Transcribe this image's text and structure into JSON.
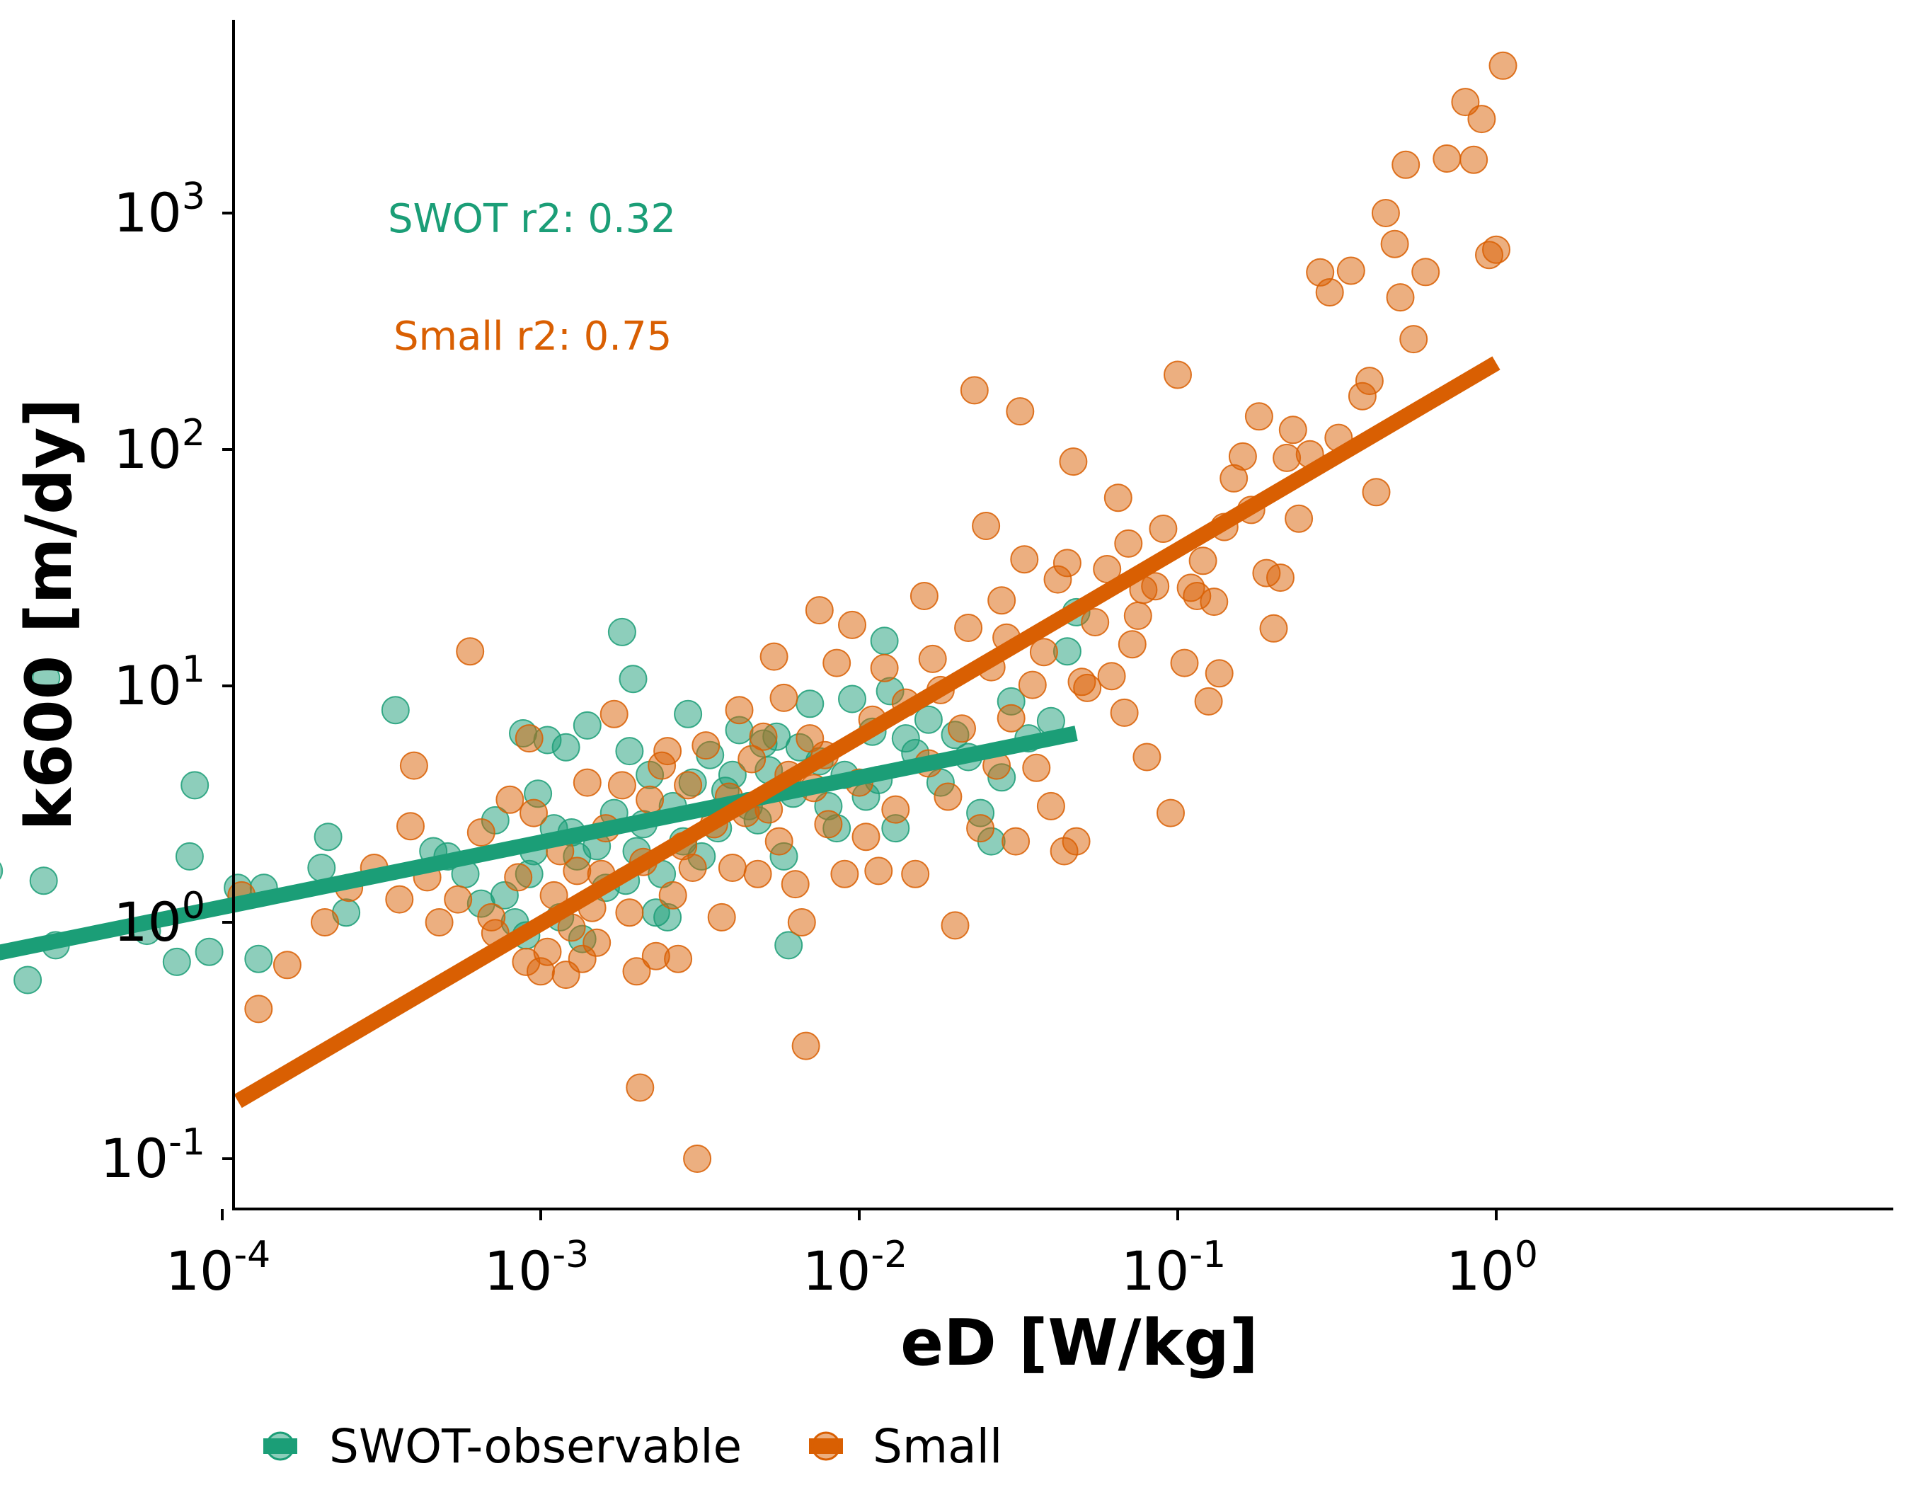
{
  "chart_data": {
    "type": "scatter",
    "xlabel": "eD [W/kg]",
    "ylabel": "k600 [m/dy]",
    "x_scale": "log",
    "y_scale": "log",
    "xlim": [
      1.15e-05,
      1.25
    ],
    "ylim": [
      0.059,
      6800
    ],
    "grid": false,
    "legend_position": "bottom",
    "x_ticks": [
      {
        "value": 0.0001,
        "base": "10",
        "exp": "-4"
      },
      {
        "value": 0.001,
        "base": "10",
        "exp": "-3"
      },
      {
        "value": 0.01,
        "base": "10",
        "exp": "-2"
      },
      {
        "value": 0.1,
        "base": "10",
        "exp": "-1"
      },
      {
        "value": 1,
        "base": "10",
        "exp": "0"
      }
    ],
    "y_ticks": [
      {
        "value": 0.1,
        "base": "10",
        "exp": "-1"
      },
      {
        "value": 1,
        "base": "10",
        "exp": "0"
      },
      {
        "value": 10,
        "base": "10",
        "exp": "1"
      },
      {
        "value": 100,
        "base": "10",
        "exp": "2"
      },
      {
        "value": 1000,
        "base": "10",
        "exp": "3"
      }
    ],
    "annotations": [
      {
        "text": "SWOT r2: 0.32",
        "color": "#1b9e77"
      },
      {
        "text": "Small r2: 0.75",
        "color": "#d95f02"
      }
    ],
    "series": [
      {
        "name": "SWOT-observable",
        "color": "#1b9e77",
        "fit_line": [
          [
            1.85e-05,
            0.73
          ],
          [
            0.048,
            6.3
          ]
        ],
        "points": [
          [
            1.85e-05,
            1.65
          ],
          [
            2.45e-05,
            0.57
          ],
          [
            2.75e-05,
            1.5
          ],
          [
            2.8e-05,
            10.8
          ],
          [
            3e-05,
            0.8
          ],
          [
            5.8e-05,
            0.92
          ],
          [
            7.2e-05,
            0.68
          ],
          [
            7.9e-05,
            1.9
          ],
          [
            8.2e-05,
            3.8
          ],
          [
            9.1e-05,
            0.75
          ],
          [
            0.000112,
            1.4
          ],
          [
            0.00013,
            0.7
          ],
          [
            0.000135,
            1.4
          ],
          [
            0.000205,
            1.7
          ],
          [
            0.000215,
            2.3
          ],
          [
            0.000245,
            1.1
          ],
          [
            0.00035,
            7.9
          ],
          [
            0.00046,
            2.0
          ],
          [
            0.00051,
            1.9
          ],
          [
            0.00058,
            1.6
          ],
          [
            0.00065,
            1.2
          ],
          [
            0.00072,
            2.7
          ],
          [
            0.00077,
            1.3
          ],
          [
            0.00083,
            1.0
          ],
          [
            0.00088,
            6.3
          ],
          [
            0.00092,
            1.6
          ],
          [
            0.00095,
            2.0
          ],
          [
            0.0009,
            0.88
          ],
          [
            0.00098,
            3.5
          ],
          [
            0.00105,
            5.9
          ],
          [
            0.0011,
            2.5
          ],
          [
            0.00115,
            1.05
          ],
          [
            0.0012,
            5.5
          ],
          [
            0.00125,
            2.4
          ],
          [
            0.0013,
            1.9
          ],
          [
            0.00135,
            0.85
          ],
          [
            0.0014,
            6.8
          ],
          [
            0.0015,
            2.1
          ],
          [
            0.0016,
            1.4
          ],
          [
            0.0017,
            2.9
          ],
          [
            0.0018,
            16.9
          ],
          [
            0.00185,
            1.5
          ],
          [
            0.0019,
            5.3
          ],
          [
            0.00195,
            10.7
          ],
          [
            0.002,
            2.0
          ],
          [
            0.0021,
            2.6
          ],
          [
            0.0022,
            4.2
          ],
          [
            0.0023,
            1.1
          ],
          [
            0.0024,
            1.6
          ],
          [
            0.0025,
            1.05
          ],
          [
            0.0026,
            3.1
          ],
          [
            0.0028,
            2.2
          ],
          [
            0.0029,
            7.6
          ],
          [
            0.003,
            3.9
          ],
          [
            0.0032,
            1.9
          ],
          [
            0.0034,
            5.1
          ],
          [
            0.0036,
            2.5
          ],
          [
            0.0038,
            3.6
          ],
          [
            0.004,
            4.2
          ],
          [
            0.0042,
            6.5
          ],
          [
            0.0045,
            3.1
          ],
          [
            0.0048,
            2.7
          ],
          [
            0.005,
            5.7
          ],
          [
            0.0052,
            4.4
          ],
          [
            0.0055,
            6.1
          ],
          [
            0.0058,
            1.9
          ],
          [
            0.006,
            0.8
          ],
          [
            0.0062,
            3.5
          ],
          [
            0.0065,
            5.5
          ],
          [
            0.007,
            8.4
          ],
          [
            0.0075,
            4.8
          ],
          [
            0.008,
            3.1
          ],
          [
            0.0085,
            2.5
          ],
          [
            0.009,
            4.2
          ],
          [
            0.0095,
            8.8
          ],
          [
            0.0105,
            3.4
          ],
          [
            0.011,
            6.4
          ],
          [
            0.0115,
            4.0
          ],
          [
            0.012,
            15.5
          ],
          [
            0.0125,
            9.5
          ],
          [
            0.013,
            2.5
          ],
          [
            0.014,
            6.0
          ],
          [
            0.015,
            5.2
          ],
          [
            0.0165,
            7.2
          ],
          [
            0.018,
            3.9
          ],
          [
            0.02,
            6.2
          ],
          [
            0.022,
            5.0
          ],
          [
            0.024,
            2.9
          ],
          [
            0.026,
            2.2
          ],
          [
            0.028,
            4.1
          ],
          [
            0.03,
            8.6
          ],
          [
            0.034,
            6.0
          ],
          [
            0.04,
            7.1
          ],
          [
            0.045,
            14.0
          ],
          [
            0.048,
            20.5
          ]
        ]
      },
      {
        "name": "Small",
        "color": "#d95f02",
        "fit_line": [
          [
            0.000112,
            0.175
          ],
          [
            1.0,
            232
          ]
        ],
        "points": [
          [
            0.000115,
            1.3
          ],
          [
            0.00013,
            0.43
          ],
          [
            0.00016,
            0.66
          ],
          [
            0.00021,
            1.0
          ],
          [
            0.00025,
            1.4
          ],
          [
            0.0003,
            1.7
          ],
          [
            0.00036,
            1.25
          ],
          [
            0.00039,
            2.55
          ],
          [
            0.0004,
            4.6
          ],
          [
            0.00044,
            1.55
          ],
          [
            0.00048,
            1.0
          ],
          [
            0.00055,
            1.25
          ],
          [
            0.0006,
            14.0
          ],
          [
            0.00065,
            2.4
          ],
          [
            0.0007,
            1.05
          ],
          [
            0.00072,
            0.9
          ],
          [
            0.0008,
            3.3
          ],
          [
            0.00085,
            1.55
          ],
          [
            0.0009,
            0.68
          ],
          [
            0.00092,
            6.0
          ],
          [
            0.00095,
            2.9
          ],
          [
            0.001,
            0.62
          ],
          [
            0.00105,
            0.75
          ],
          [
            0.0011,
            1.3
          ],
          [
            0.00115,
            2.0
          ],
          [
            0.0012,
            0.6
          ],
          [
            0.00125,
            0.95
          ],
          [
            0.0013,
            1.65
          ],
          [
            0.00135,
            0.7
          ],
          [
            0.0014,
            3.9
          ],
          [
            0.00145,
            1.15
          ],
          [
            0.0015,
            0.82
          ],
          [
            0.00155,
            1.6
          ],
          [
            0.0016,
            2.5
          ],
          [
            0.0017,
            7.6
          ],
          [
            0.0018,
            3.8
          ],
          [
            0.0019,
            1.1
          ],
          [
            0.002,
            0.62
          ],
          [
            0.00205,
            0.2
          ],
          [
            0.0021,
            1.8
          ],
          [
            0.0022,
            3.3
          ],
          [
            0.0023,
            0.72
          ],
          [
            0.0024,
            4.6
          ],
          [
            0.0025,
            5.3
          ],
          [
            0.0026,
            1.3
          ],
          [
            0.0027,
            0.7
          ],
          [
            0.0028,
            2.1
          ],
          [
            0.0029,
            3.8
          ],
          [
            0.003,
            1.7
          ],
          [
            0.0031,
            0.1
          ],
          [
            0.0033,
            5.6
          ],
          [
            0.0035,
            2.6
          ],
          [
            0.0037,
            1.05
          ],
          [
            0.0039,
            3.4
          ],
          [
            0.004,
            1.7
          ],
          [
            0.0042,
            7.9
          ],
          [
            0.0044,
            2.9
          ],
          [
            0.0046,
            4.9
          ],
          [
            0.0048,
            1.6
          ],
          [
            0.005,
            6.1
          ],
          [
            0.0052,
            3.0
          ],
          [
            0.0054,
            13.3
          ],
          [
            0.0056,
            2.2
          ],
          [
            0.0058,
            8.9
          ],
          [
            0.006,
            4.2
          ],
          [
            0.0063,
            1.45
          ],
          [
            0.0066,
            1.0
          ],
          [
            0.0068,
            0.3
          ],
          [
            0.007,
            6.0
          ],
          [
            0.0072,
            3.7
          ],
          [
            0.0075,
            20.9
          ],
          [
            0.0078,
            5.1
          ],
          [
            0.008,
            2.6
          ],
          [
            0.0085,
            12.5
          ],
          [
            0.009,
            1.6
          ],
          [
            0.0095,
            18.1
          ],
          [
            0.01,
            3.9
          ],
          [
            0.0105,
            2.3
          ],
          [
            0.011,
            7.2
          ],
          [
            0.0115,
            1.65
          ],
          [
            0.012,
            11.9
          ],
          [
            0.013,
            3.0
          ],
          [
            0.014,
            8.5
          ],
          [
            0.015,
            1.6
          ],
          [
            0.016,
            24.0
          ],
          [
            0.0165,
            4.7
          ],
          [
            0.017,
            13.0
          ],
          [
            0.018,
            9.6
          ],
          [
            0.019,
            3.4
          ],
          [
            0.02,
            0.97
          ],
          [
            0.021,
            6.6
          ],
          [
            0.022,
            17.6
          ],
          [
            0.023,
            178
          ],
          [
            0.024,
            2.5
          ],
          [
            0.025,
            47.5
          ],
          [
            0.026,
            12.0
          ],
          [
            0.027,
            4.6
          ],
          [
            0.028,
            23.0
          ],
          [
            0.029,
            16.0
          ],
          [
            0.03,
            7.3
          ],
          [
            0.031,
            2.2
          ],
          [
            0.032,
            145
          ],
          [
            0.033,
            34.3
          ],
          [
            0.035,
            10.1
          ],
          [
            0.036,
            4.5
          ],
          [
            0.038,
            13.9
          ],
          [
            0.04,
            3.1
          ],
          [
            0.042,
            28.2
          ],
          [
            0.044,
            2.0
          ],
          [
            0.045,
            33.1
          ],
          [
            0.047,
            88.9
          ],
          [
            0.048,
            2.2
          ],
          [
            0.05,
            10.4
          ],
          [
            0.052,
            9.8
          ],
          [
            0.055,
            18.6
          ],
          [
            0.06,
            31.2
          ],
          [
            0.062,
            11.0
          ],
          [
            0.065,
            62.5
          ],
          [
            0.068,
            7.7
          ],
          [
            0.07,
            40.0
          ],
          [
            0.072,
            15.0
          ],
          [
            0.075,
            19.8
          ],
          [
            0.078,
            25.5
          ],
          [
            0.08,
            5.0
          ],
          [
            0.085,
            26.4
          ],
          [
            0.09,
            46.2
          ],
          [
            0.095,
            2.9
          ],
          [
            0.1,
            207
          ],
          [
            0.105,
            12.5
          ],
          [
            0.11,
            26.0
          ],
          [
            0.115,
            24.0
          ],
          [
            0.12,
            33.8
          ],
          [
            0.125,
            8.6
          ],
          [
            0.13,
            22.7
          ],
          [
            0.135,
            11.3
          ],
          [
            0.14,
            47.0
          ],
          [
            0.15,
            75.5
          ],
          [
            0.16,
            93.4
          ],
          [
            0.17,
            55.5
          ],
          [
            0.18,
            138
          ],
          [
            0.19,
            30.0
          ],
          [
            0.2,
            17.5
          ],
          [
            0.21,
            28.7
          ],
          [
            0.22,
            92.1
          ],
          [
            0.23,
            121
          ],
          [
            0.24,
            51.0
          ],
          [
            0.26,
            95.5
          ],
          [
            0.28,
            561
          ],
          [
            0.3,
            462
          ],
          [
            0.32,
            112
          ],
          [
            0.35,
            570
          ],
          [
            0.38,
            168
          ],
          [
            0.4,
            195
          ],
          [
            0.42,
            66.0
          ],
          [
            0.45,
            1000
          ],
          [
            0.48,
            740
          ],
          [
            0.5,
            440
          ],
          [
            0.52,
            1600
          ],
          [
            0.55,
            293
          ],
          [
            0.6,
            563
          ],
          [
            0.7,
            1700
          ],
          [
            0.8,
            2950
          ],
          [
            0.85,
            1680
          ],
          [
            0.9,
            2500
          ],
          [
            0.95,
            665
          ],
          [
            1.0,
            700
          ],
          [
            1.05,
            4200
          ]
        ]
      }
    ]
  },
  "legend": {
    "items": [
      {
        "label": "SWOT-observable",
        "color": "#1b9e77"
      },
      {
        "label": "Small",
        "color": "#d95f02"
      }
    ]
  }
}
